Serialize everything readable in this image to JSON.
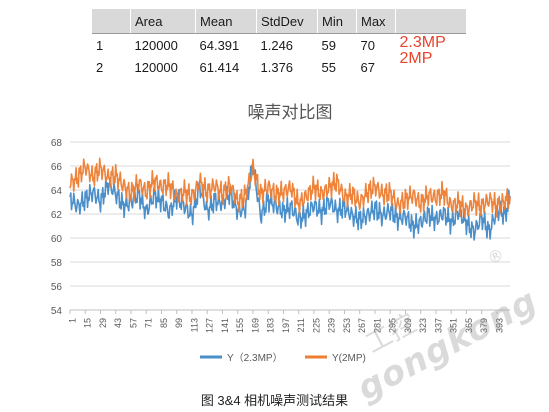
{
  "stats_table": {
    "headers": [
      "",
      "Area",
      "Mean",
      "StdDev",
      "Min",
      "Max",
      ""
    ],
    "rows": [
      {
        "cells": [
          "1",
          "120000",
          "64.391",
          "1.246",
          "59",
          "70"
        ],
        "label": "2.3MP"
      },
      {
        "cells": [
          "2",
          "120000",
          "61.414",
          "1.376",
          "55",
          "67"
        ],
        "label": "2MP"
      }
    ],
    "label_color": "#e8432b"
  },
  "caption": "图 3&4 相机噪声测试结果",
  "watermark": {
    "cn": "工控",
    "en": "gongkong",
    "reg": "®"
  },
  "chart_data": {
    "type": "line",
    "title": "噪声对比图",
    "xlabel": "",
    "ylabel": "",
    "ylim": [
      54,
      68
    ],
    "yticks": [
      54,
      56,
      58,
      60,
      62,
      64,
      66,
      68
    ],
    "x_range": [
      1,
      405
    ],
    "xticks": [
      1,
      15,
      29,
      43,
      57,
      71,
      85,
      99,
      113,
      127,
      141,
      155,
      169,
      183,
      197,
      211,
      225,
      239,
      253,
      267,
      281,
      295,
      309,
      323,
      337,
      351,
      365,
      379,
      393
    ],
    "grid": "horizontal",
    "legend": "bottom",
    "series": [
      {
        "name": "Y（2.3MP）",
        "color": "#4a8fca",
        "x": [
          1,
          8,
          15,
          22,
          29,
          36,
          43,
          50,
          57,
          64,
          71,
          78,
          85,
          92,
          99,
          106,
          113,
          120,
          127,
          134,
          141,
          148,
          155,
          162,
          169,
          176,
          183,
          190,
          197,
          204,
          211,
          218,
          225,
          232,
          239,
          246,
          253,
          260,
          267,
          274,
          281,
          288,
          295,
          302,
          309,
          316,
          323,
          330,
          337,
          344,
          351,
          358,
          365,
          372,
          379,
          386,
          393,
          400,
          405
        ],
        "values": [
          63.2,
          62.8,
          63.5,
          64.1,
          63.0,
          64.3,
          63.4,
          62.5,
          63.1,
          64.0,
          62.4,
          63.6,
          62.9,
          61.8,
          63.2,
          62.7,
          62.1,
          64.6,
          62.3,
          63.0,
          62.6,
          63.5,
          62.2,
          62.7,
          66.5,
          62.0,
          63.1,
          62.4,
          61.9,
          62.5,
          61.7,
          62.3,
          63.0,
          62.1,
          62.8,
          61.9,
          62.4,
          62.0,
          61.8,
          62.2,
          62.5,
          61.6,
          62.0,
          61.4,
          61.9,
          61.2,
          61.6,
          62.1,
          61.3,
          61.8,
          61.0,
          62.2,
          61.5,
          60.8,
          61.9,
          60.4,
          62.0,
          61.7,
          63.5
        ]
      },
      {
        "name": "Y(2MP)",
        "color": "#ed7d31",
        "x": [
          1,
          8,
          15,
          22,
          29,
          36,
          43,
          50,
          57,
          64,
          71,
          78,
          85,
          92,
          99,
          106,
          113,
          120,
          127,
          134,
          141,
          148,
          155,
          162,
          169,
          176,
          183,
          190,
          197,
          204,
          211,
          218,
          225,
          232,
          239,
          246,
          253,
          260,
          267,
          274,
          281,
          288,
          295,
          302,
          309,
          316,
          323,
          330,
          337,
          344,
          351,
          358,
          365,
          372,
          379,
          386,
          393,
          400,
          405
        ],
        "values": [
          64.8,
          65.3,
          66.2,
          65.0,
          65.6,
          64.7,
          65.1,
          64.5,
          64.0,
          64.9,
          63.8,
          64.6,
          63.9,
          64.3,
          63.5,
          64.2,
          63.7,
          64.8,
          63.6,
          64.1,
          63.4,
          64.5,
          63.2,
          63.9,
          66.0,
          63.5,
          64.0,
          63.3,
          63.8,
          64.4,
          63.1,
          63.7,
          64.2,
          63.4,
          63.9,
          64.6,
          63.5,
          64.0,
          63.2,
          63.8,
          64.1,
          63.3,
          63.6,
          62.8,
          63.5,
          63.9,
          62.9,
          63.4,
          63.0,
          63.6,
          62.7,
          63.2,
          62.6,
          63.1,
          62.5,
          62.9,
          62.4,
          63.0,
          63.4
        ]
      }
    ]
  }
}
